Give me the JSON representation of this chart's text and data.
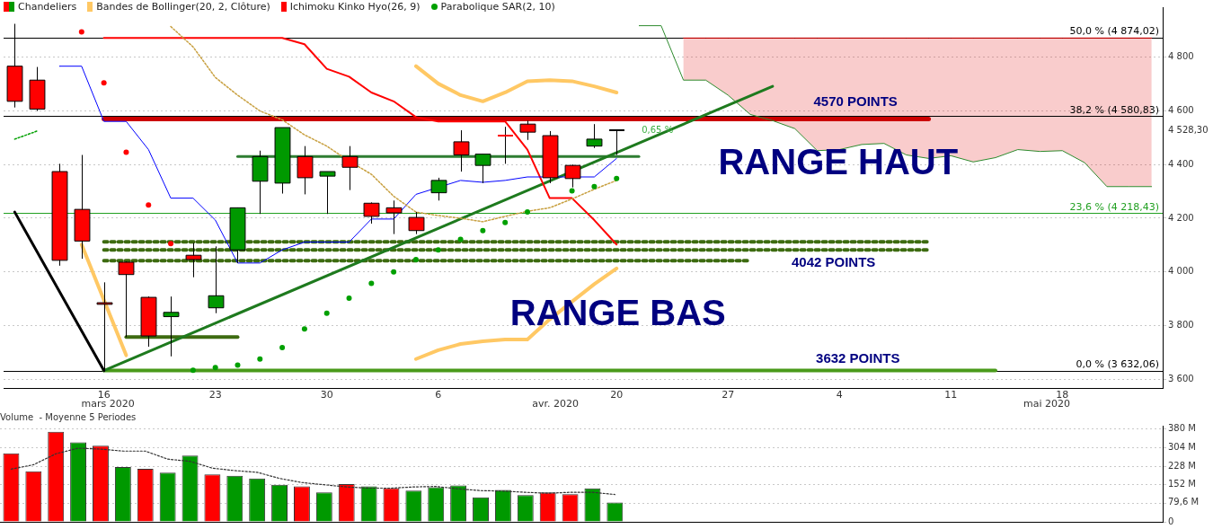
{
  "chart_data": [
    {
      "type": "line",
      "categories": [
        null,
        null,
        null,
        null,
        "16",
        null,
        null,
        null,
        null,
        "23",
        null,
        null,
        null,
        null,
        "30",
        null,
        null,
        null,
        null,
        "6",
        null,
        null,
        null,
        null,
        null,
        null,
        null,
        "20",
        null,
        null,
        null,
        null,
        "27",
        null,
        null,
        null,
        null,
        "4",
        null,
        null,
        null,
        null,
        "11",
        null,
        null,
        null,
        null,
        "18",
        null,
        null,
        null,
        null
      ],
      "ylim": [
        3567,
        4987
      ],
      "yticks": [
        {
          "value": 3600,
          "label": "3 600"
        },
        {
          "value": 3800,
          "label": "3 800"
        },
        {
          "value": 4000,
          "label": "4 000"
        },
        {
          "value": 4200,
          "label": "4 200"
        },
        {
          "value": 4400,
          "label": "4 400"
        },
        {
          "value": 4528.3,
          "label": "4 528,30"
        },
        {
          "value": 4600,
          "label": "4 600"
        },
        {
          "value": 4800,
          "label": "4 800"
        }
      ],
      "grid": "y",
      "legend": "top left",
      "series": [
        {
          "type": "candlestick",
          "name": "Chandeliers",
          "ohlc": [
            [
              4767,
              4925,
              4613,
              4636
            ],
            [
              4715,
              4764,
              4600,
              4607
            ],
            [
              4374,
              4403,
              4023,
              4043
            ],
            [
              4233,
              4436,
              4049,
              4115
            ],
            [
              3885,
              3961,
              3632,
              3879
            ],
            [
              4036,
              4039,
              3757,
              3990
            ],
            [
              3905,
              3908,
              3721,
              3761
            ],
            [
              3833,
              3908,
              3685,
              3849
            ],
            [
              4062,
              4108,
              3980,
              4046
            ],
            [
              3866,
              4095,
              3846,
              3911
            ],
            [
              4082,
              4239,
              4033,
              4239
            ],
            [
              4338,
              4452,
              4216,
              4430
            ],
            [
              4331,
              4538,
              4292,
              4538
            ],
            [
              4430,
              4469,
              4289,
              4351
            ],
            [
              4357,
              4374,
              4216,
              4374
            ],
            [
              4430,
              4469,
              4305,
              4390
            ],
            [
              4256,
              4259,
              4180,
              4207
            ],
            [
              4239,
              4266,
              4141,
              4220
            ],
            [
              4203,
              4223,
              4141,
              4154
            ],
            [
              4295,
              4351,
              4266,
              4341
            ],
            [
              4485,
              4528,
              4374,
              4436
            ],
            [
              4397,
              4439,
              4331,
              4439
            ],
            [
              4508,
              4541,
              4403,
              4505
            ],
            [
              4551,
              4564,
              4492,
              4521
            ],
            [
              4508,
              4525,
              4331,
              4351
            ],
            [
              4397,
              4400,
              4315,
              4348
            ],
            [
              4469,
              4551,
              4462,
              4495
            ],
            [
              4528.3,
              4528.3,
              4436,
              4528.3
            ],
            null,
            null,
            null,
            null,
            null,
            null,
            null,
            null,
            null,
            null,
            null,
            null,
            null,
            null,
            null,
            null,
            null,
            null,
            null,
            null,
            null,
            null,
            null,
            null
          ],
          "colors": [
            "#ff0000",
            "#ff0000",
            "#ff0000",
            "#ff0000",
            "#ff0000",
            "#ff0000",
            "#ff0000",
            "#009900",
            "#ff0000",
            "#009900",
            "#009900",
            "#009900",
            "#009900",
            "#ff0000",
            "#009900",
            "#ff0000",
            "#ff0000",
            "#ff0000",
            "#ff0000",
            "#009900",
            "#ff0000",
            "#009900",
            "#ff0000",
            "#ff0000",
            "#ff0000",
            "#ff0000",
            "#009900",
            "#000000",
            null,
            null,
            null,
            null,
            null,
            null,
            null,
            null,
            null,
            null,
            null,
            null,
            null,
            null,
            null,
            null,
            null,
            null,
            null,
            null,
            null,
            null,
            null,
            null
          ]
        },
        {
          "name": "Bandes de Bollinger(20, 2, Clôture)",
          "color": "#ffc864",
          "values": [
            null,
            null,
            null,
            null,
            null,
            null,
            null,
            null,
            null,
            null,
            null,
            null,
            null,
            null,
            null,
            null,
            null,
            null,
            4767,
            4702,
            4659,
            4636,
            4669,
            4711,
            4715,
            4711,
            4692,
            4669,
            null,
            null,
            null,
            null,
            null,
            null,
            null,
            null,
            null,
            null,
            null,
            null,
            null,
            null,
            null,
            null,
            null,
            null,
            null,
            null,
            null,
            null,
            null,
            null
          ]
        },
        {
          "color": "#ffc864",
          "values": [
            null,
            null,
            null,
            4102,
            3895,
            3689,
            null,
            null,
            null,
            null,
            null,
            null,
            null,
            null,
            null,
            null,
            null,
            null,
            null,
            null,
            null,
            null,
            null,
            null,
            null,
            null,
            null,
            null,
            null,
            null,
            null,
            null,
            null,
            null,
            null,
            null,
            null,
            null,
            null,
            null,
            null,
            null,
            null,
            null,
            null,
            null,
            null,
            null,
            null,
            null,
            null,
            null
          ]
        },
        {
          "color": "#ffc864",
          "values": [
            null,
            null,
            null,
            null,
            null,
            null,
            null,
            null,
            null,
            null,
            null,
            null,
            null,
            null,
            null,
            null,
            null,
            null,
            3675,
            3708,
            3731,
            3741,
            3748,
            3748,
            3823,
            3889,
            3954,
            4013,
            null,
            null,
            null,
            null,
            null,
            null,
            null,
            null,
            null,
            null,
            null,
            null,
            null,
            null,
            null,
            null,
            null,
            null,
            null,
            null,
            null,
            null,
            null,
            null
          ]
        },
        {
          "color": "#c8a040",
          "line_style": "dotted",
          "values": [
            null,
            null,
            null,
            null,
            null,
            null,
            null,
            4915,
            4839,
            4725,
            4659,
            4600,
            4567,
            4511,
            4469,
            4413,
            4364,
            4282,
            4223,
            4210,
            4200,
            4187,
            4207,
            4226,
            4239,
            4272,
            4308,
            4341,
            null,
            null,
            null,
            null,
            null,
            null,
            null,
            null,
            null,
            null,
            null,
            null,
            null,
            null,
            null,
            null,
            null,
            null,
            null,
            null,
            null,
            null,
            null,
            null
          ]
        },
        {
          "color": "#0000ff",
          "values": [
            null,
            null,
            4767,
            4767,
            4561,
            4561,
            4456,
            4275,
            4275,
            4193,
            4033,
            4033,
            4082,
            4111,
            4111,
            4111,
            4197,
            4197,
            4289,
            null,
            4341,
            4334,
            4341,
            4354,
            null,
            null,
            4354,
            4423,
            null,
            null,
            null,
            null,
            null,
            null,
            null,
            null,
            null,
            null,
            null,
            null,
            null,
            null,
            null,
            null,
            null,
            null,
            null,
            null,
            null,
            null,
            null,
            null
          ]
        },
        {
          "name": "Ichimoku Kinko Hyo(26, 9)",
          "color": "#ff0000",
          "values": [
            null,
            null,
            null,
            null,
            4872,
            4872,
            4872,
            4872,
            4872,
            4872,
            4872,
            4872,
            4872,
            4849,
            4757,
            4728,
            4669,
            4636,
            4577,
            4561,
            4561,
            4561,
            4561,
            4456,
            4275,
            4275,
            4193,
            4102,
            null,
            null,
            null,
            null,
            null,
            null,
            null,
            null,
            null,
            null,
            null,
            null,
            null,
            null,
            null,
            null,
            null,
            null,
            null,
            null,
            null,
            null,
            null,
            null
          ]
        },
        {
          "color": "#e00000",
          "values": [
            null,
            null,
            null,
            null,
            null,
            null,
            null,
            null,
            null,
            null,
            null,
            null,
            null,
            null,
            null,
            null,
            null,
            null,
            null,
            null,
            null,
            null,
            null,
            null,
            null,
            null,
            null,
            null,
            null,
            null,
            4872,
            4872,
            4872,
            4872,
            4872,
            4872,
            4872,
            4872,
            4872,
            4872,
            4872,
            4872,
            4872,
            4872,
            4872,
            4872,
            4872,
            4872,
            4872,
            4872,
            4872,
            4872
          ],
          "upper": [
            null,
            null,
            null,
            null,
            null,
            null,
            null,
            null,
            null,
            null,
            null,
            null,
            null,
            null,
            null,
            null,
            null,
            null,
            null,
            null,
            null,
            null,
            null,
            null,
            null,
            null,
            null,
            null,
            null,
            null,
            4872,
            4872,
            4872,
            4872,
            4872,
            4872,
            4872,
            4872,
            4872,
            4872,
            4872,
            4872,
            4872,
            4872,
            4872,
            4872,
            4872,
            4872,
            4872,
            4872,
            4872,
            4872
          ],
          "lower": [
            null,
            null,
            null,
            null,
            null,
            null,
            null,
            null,
            null,
            null,
            null,
            null,
            null,
            null,
            null,
            null,
            null,
            null,
            null,
            null,
            null,
            null,
            null,
            null,
            null,
            null,
            null,
            null,
            null,
            null,
            4715,
            4715,
            4659,
            4587,
            4564,
            4534,
            4452,
            4456,
            4475,
            4479,
            4436,
            4423,
            4433,
            4410,
            4426,
            4456,
            4449,
            4452,
            4407,
            4318,
            4318,
            4318
          ]
        },
        {
          "color": "#2e8b2e",
          "values": [
            null,
            null,
            null,
            null,
            null,
            null,
            null,
            null,
            null,
            null,
            null,
            null,
            null,
            null,
            null,
            null,
            null,
            null,
            null,
            null,
            null,
            null,
            null,
            null,
            null,
            null,
            null,
            null,
            4918,
            4918,
            4715,
            4715,
            4659,
            4587,
            4564,
            4534,
            4452,
            4456,
            4475,
            4479,
            4436,
            4423,
            4433,
            4410,
            4426,
            4456,
            4449,
            4452,
            4407,
            4318,
            4318,
            4318
          ]
        },
        {
          "color": "#00a000",
          "line_style": "dotted",
          "values": [
            4495,
            4525,
            null,
            null,
            null,
            null,
            null,
            null,
            null,
            null,
            null,
            null,
            null,
            null,
            null,
            null,
            null,
            null,
            null,
            null,
            null,
            null,
            null,
            null,
            null,
            null,
            null,
            null,
            null,
            null,
            null,
            null,
            null,
            null,
            null,
            null,
            null,
            null,
            null,
            null,
            null,
            null,
            null,
            null,
            null,
            null,
            null,
            null,
            null,
            null,
            null,
            null
          ]
        },
        {
          "type": "scatter",
          "name": "Parabolique SAR(2, 10)",
          "color": "#00a000",
          "marker": "circle",
          "values": [
            null,
            null,
            null,
            4895,
            4705,
            4446,
            4249,
            4105,
            3633,
            3643,
            3652,
            3675,
            3718,
            3787,
            3846,
            3902,
            3957,
            4000,
            4046,
            4082,
            4121,
            4154,
            4184,
            4223,
            null,
            4302,
            4318,
            4348,
            null,
            null,
            null,
            null,
            null,
            null,
            null,
            null,
            null,
            null,
            null,
            null,
            null,
            null,
            null,
            null,
            null,
            null,
            null,
            null,
            null,
            null,
            null,
            null
          ],
          "colors": [
            null,
            null,
            null,
            "#ff0000",
            "#ff0000",
            "#ff0000",
            "#ff0000",
            "#ff0000",
            "#00a000",
            "#00a000",
            "#00a000",
            "#00a000",
            "#00a000",
            "#00a000",
            "#00a000",
            "#00a000",
            "#00a000",
            "#00a000",
            "#00a000",
            "#00a000",
            "#00a000",
            "#00a000",
            "#00a000",
            "#00a000",
            null,
            "#00a000",
            "#00a000",
            "#00a000",
            null,
            null,
            null,
            null,
            null,
            null,
            null,
            null,
            null,
            null,
            null,
            null,
            null,
            null,
            null,
            null,
            null,
            null,
            null,
            null,
            null,
            null,
            null,
            null
          ]
        },
        {
          "color": "#000000",
          "values": [
            4223,
            null,
            null,
            null,
            3632,
            null,
            null,
            null,
            null,
            null,
            null,
            null,
            null,
            null,
            null,
            null,
            null,
            null,
            null,
            null,
            null,
            null,
            null,
            null,
            null,
            null,
            null,
            null,
            null,
            null,
            null,
            null,
            null,
            null,
            null,
            null,
            null,
            null,
            null,
            null,
            null,
            null,
            null,
            null,
            null,
            null,
            null,
            null,
            null,
            null,
            null,
            null
          ]
        },
        {
          "color": "#1e7a1e",
          "values": [
            null,
            null,
            null,
            null,
            3632,
            null,
            null,
            null,
            null,
            null,
            null,
            null,
            null,
            null,
            null,
            null,
            null,
            null,
            null,
            null,
            null,
            null,
            null,
            null,
            null,
            null,
            null,
            null,
            null,
            null,
            null,
            null,
            null,
            null,
            4692,
            null,
            null,
            null,
            null,
            null,
            null,
            null,
            null,
            null,
            null,
            null,
            null,
            null,
            null,
            null,
            null,
            null
          ]
        },
        {
          "color": "#cc0000",
          "values": [
            null,
            null,
            null,
            null,
            4570,
            null,
            null,
            null,
            null,
            null,
            null,
            null,
            null,
            null,
            null,
            null,
            null,
            null,
            null,
            null,
            null,
            null,
            null,
            null,
            null,
            null,
            null,
            null,
            null,
            null,
            null,
            null,
            null,
            null,
            null,
            null,
            null,
            null,
            null,
            null,
            null,
            4570,
            null,
            null,
            null,
            null,
            null,
            null,
            null,
            null,
            null,
            null
          ]
        },
        {
          "color": "#2e7d32",
          "values": [
            null,
            null,
            null,
            null,
            null,
            null,
            null,
            null,
            null,
            null,
            4430,
            null,
            null,
            null,
            null,
            null,
            null,
            null,
            null,
            null,
            null,
            null,
            null,
            null,
            null,
            null,
            null,
            null,
            4430,
            null,
            null,
            null,
            null,
            null,
            null,
            null,
            null,
            null,
            null,
            null,
            null,
            null,
            null,
            null,
            null,
            null,
            null,
            null,
            null,
            null,
            null,
            null
          ]
        },
        {
          "color": "#3d6b10",
          "values": [
            null,
            null,
            null,
            null,
            null,
            3757,
            null,
            null,
            null,
            null,
            3757,
            null,
            null,
            null,
            null,
            null,
            null,
            null,
            null,
            null,
            null,
            null,
            null,
            null,
            null,
            null,
            null,
            null,
            null,
            null,
            null,
            null,
            null,
            null,
            null,
            null,
            null,
            null,
            null,
            null,
            null,
            null,
            null,
            null,
            null,
            null,
            null,
            null,
            null,
            null,
            null,
            null
          ]
        },
        {
          "color": "#3d6b10",
          "line_style": "dotted",
          "values": [
            null,
            null,
            null,
            null,
            4112,
            null,
            null,
            null,
            null,
            null,
            null,
            null,
            null,
            null,
            null,
            null,
            null,
            null,
            null,
            null,
            null,
            null,
            null,
            null,
            null,
            null,
            null,
            null,
            null,
            null,
            null,
            null,
            null,
            null,
            null,
            null,
            null,
            null,
            null,
            null,
            null,
            4112,
            null,
            null,
            null,
            null,
            null,
            null,
            null,
            null,
            null,
            null
          ]
        },
        {
          "color": "#3d6b10",
          "line_style": "dotted",
          "values": [
            null,
            null,
            null,
            null,
            4082,
            null,
            null,
            null,
            null,
            null,
            null,
            null,
            null,
            null,
            null,
            null,
            null,
            null,
            null,
            null,
            null,
            null,
            null,
            null,
            null,
            null,
            null,
            null,
            null,
            null,
            null,
            null,
            null,
            null,
            null,
            null,
            null,
            null,
            null,
            null,
            null,
            4082,
            null,
            null,
            null,
            null,
            null,
            null,
            null,
            null,
            null,
            null
          ]
        },
        {
          "color": "#3d6b10",
          "line_style": "dotted",
          "values": [
            null,
            null,
            null,
            null,
            4042,
            null,
            null,
            null,
            null,
            null,
            null,
            null,
            null,
            null,
            null,
            null,
            null,
            null,
            null,
            null,
            null,
            null,
            null,
            null,
            null,
            null,
            null,
            null,
            null,
            null,
            null,
            null,
            null,
            4042,
            null,
            null,
            null,
            null,
            null,
            null,
            null,
            null,
            null,
            null,
            null,
            null,
            null,
            null,
            null,
            null,
            null,
            null
          ]
        },
        {
          "color": "#4a9a1a",
          "values": [
            null,
            null,
            null,
            null,
            3632,
            null,
            null,
            null,
            null,
            null,
            null,
            null,
            null,
            null,
            null,
            null,
            null,
            null,
            null,
            null,
            null,
            null,
            null,
            null,
            null,
            null,
            null,
            null,
            null,
            null,
            null,
            null,
            null,
            null,
            null,
            null,
            null,
            null,
            null,
            null,
            null,
            null,
            null,
            null,
            3632,
            null,
            null,
            null,
            null,
            null,
            null,
            null
          ]
        }
      ],
      "ref_lines": [
        {
          "axis": "y",
          "value": 4874.02,
          "label": "50,0 % (4 874,02)",
          "color": "#000000"
        },
        {
          "axis": "y",
          "value": 4580.83,
          "label": "38,2 % (4 580,83)",
          "color": "#000000"
        },
        {
          "axis": "y",
          "value": 4218.43,
          "label": "23,6 % (4 218,43)",
          "color": "#22a022"
        },
        {
          "axis": "y",
          "value": 3632.06,
          "label": "0,0 % (3 632,06)",
          "color": "#000000"
        }
      ],
      "annotations": [
        "4570 POINTS",
        "4042 POINTS",
        "3632 POINTS",
        "RANGE HAUT",
        "RANGE BAS",
        {
          "text": "0,65 %",
          "x": "20",
          "y": 4528.3
        },
        "mars 2020",
        "avr. 2020",
        "mai 2020"
      ]
    },
    {
      "type": "bar",
      "title": "Volume  - Moyenne 5 Periodes",
      "categories": [
        null,
        null,
        null,
        null,
        null,
        null,
        null,
        null,
        null,
        null,
        null,
        null,
        null,
        null,
        null,
        null,
        null,
        null,
        null,
        null,
        null,
        null,
        null,
        null,
        null,
        null,
        null,
        null,
        null,
        null,
        null,
        null,
        null,
        null,
        null,
        null,
        null,
        null,
        null,
        null,
        null,
        null,
        null,
        null,
        null,
        null,
        null,
        null,
        null,
        null,
        null,
        null
      ],
      "ylim": [
        0,
        394
      ],
      "yticks": [
        {
          "value": 0,
          "label": "0"
        },
        {
          "value": 76,
          "label": null
        },
        {
          "value": 79.6,
          "label": "79,6 M"
        },
        {
          "value": 152,
          "label": "152 M"
        },
        {
          "value": 228,
          "label": "228 M"
        },
        {
          "value": 304,
          "label": "304 M"
        },
        {
          "value": 380,
          "label": "380 M"
        }
      ],
      "tick_labels": "y",
      "grid": "y",
      "series": [
        {
          "values": [
            281,
            207,
            369,
            326,
            312,
            225,
            217,
            202,
            272,
            194,
            189,
            178,
            152,
            145,
            121,
            155,
            145,
            138,
            128,
            142,
            149,
            100,
            131,
            110,
            121,
            113,
            137,
            79.6,
            null,
            null,
            null,
            null,
            null,
            null,
            null,
            null,
            null,
            null,
            null,
            null,
            null,
            null,
            null,
            null,
            null,
            null,
            null,
            null,
            null,
            null,
            null,
            null
          ],
          "colors": [
            "#ff0000",
            "#ff0000",
            "#ff0000",
            "#009900",
            "#ff0000",
            "#009900",
            "#ff0000",
            "#009900",
            "#009900",
            "#ff0000",
            "#009900",
            "#009900",
            "#009900",
            "#ff0000",
            "#009900",
            "#ff0000",
            "#009900",
            "#ff0000",
            "#009900",
            "#009900",
            "#009900",
            "#009900",
            "#009900",
            "#009900",
            "#ff0000",
            "#ff0000",
            "#009900",
            "#009900",
            null,
            null,
            null,
            null,
            null,
            null,
            null,
            null,
            null,
            null,
            null,
            null,
            null,
            null,
            null,
            null,
            null,
            null,
            null,
            null,
            null,
            null,
            null,
            null
          ]
        },
        {
          "type": "line",
          "color": "#333333",
          "line_style": "dotted",
          "values": [
            216,
            234,
            279,
            302,
            298,
            290,
            290,
            257,
            248,
            220,
            210,
            203,
            178,
            161,
            152,
            143,
            138,
            138,
            143,
            145,
            135,
            128,
            126,
            121,
            117,
            121,
            121,
            112,
            null,
            null,
            null,
            null,
            null,
            null,
            null,
            null,
            null,
            null,
            null,
            null,
            null,
            null,
            null,
            null,
            null,
            null,
            null,
            null,
            null,
            null,
            null,
            null
          ]
        }
      ]
    }
  ]
}
